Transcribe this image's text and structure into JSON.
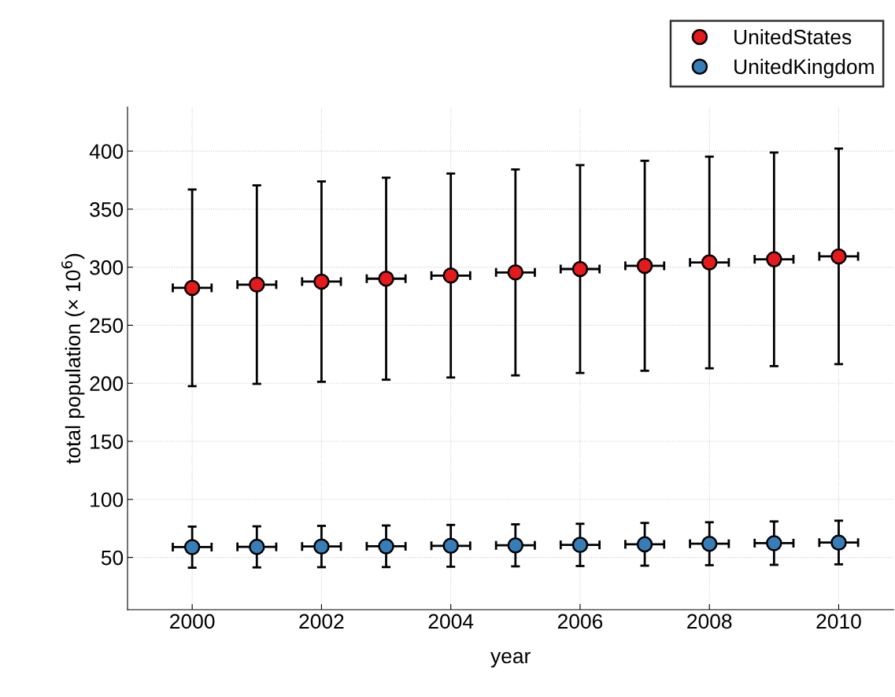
{
  "chart_data": {
    "type": "scatter",
    "xlabel": "year",
    "ylabel": "total population (× 10$^{6}$)",
    "x": [
      2000,
      2001,
      2002,
      2003,
      2004,
      2005,
      2006,
      2007,
      2008,
      2009,
      2010
    ],
    "series": [
      {
        "name": "UnitedStates",
        "color": "#e41a1c",
        "values": [
          282.2,
          285.0,
          287.6,
          290.1,
          292.8,
          295.5,
          298.4,
          301.2,
          304.1,
          306.8,
          309.3
        ],
        "errors": [
          84.7,
          85.5,
          86.3,
          87.0,
          87.8,
          88.7,
          89.5,
          90.4,
          91.2,
          92.0,
          92.8
        ],
        "xerrors": [
          0.3,
          0.3,
          0.3,
          0.3,
          0.3,
          0.3,
          0.3,
          0.3,
          0.3,
          0.3,
          0.3
        ]
      },
      {
        "name": "UnitedKingdom",
        "color": "#377eb8",
        "values": [
          58.9,
          59.1,
          59.4,
          59.6,
          60.0,
          60.4,
          60.8,
          61.3,
          61.8,
          62.3,
          62.8
        ],
        "errors": [
          17.7,
          17.7,
          17.8,
          17.9,
          18.0,
          18.1,
          18.2,
          18.4,
          18.5,
          18.7,
          18.8
        ],
        "xerrors": [
          0.3,
          0.3,
          0.3,
          0.3,
          0.3,
          0.3,
          0.3,
          0.3,
          0.3,
          0.3,
          0.3
        ]
      }
    ],
    "xlim": [
      1999,
      2010.85
    ],
    "ylim": [
      5,
      438
    ],
    "xticks": [
      2000,
      2002,
      2004,
      2006,
      2008,
      2010
    ],
    "yticks": [
      50,
      100,
      150,
      200,
      250,
      300,
      350,
      400
    ],
    "grid": true,
    "legend": "top right",
    "marker": "circle"
  }
}
